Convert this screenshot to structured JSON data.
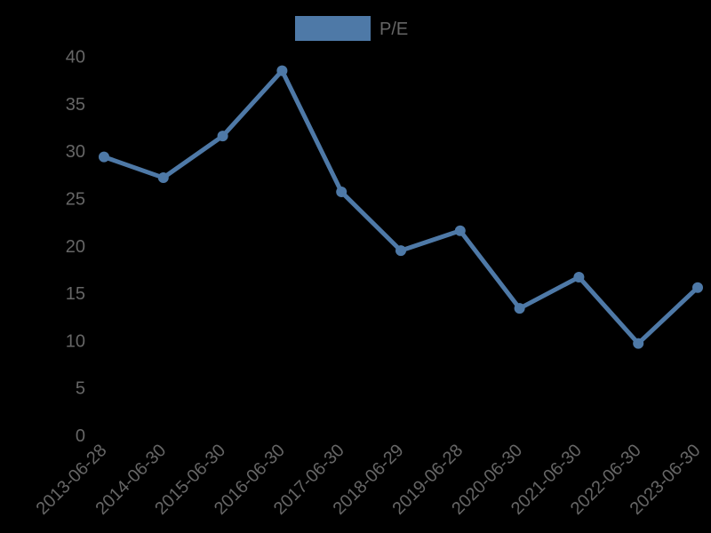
{
  "chart_data": {
    "type": "line",
    "title": "",
    "xlabel": "",
    "ylabel": "",
    "categories": [
      "2013-06-28",
      "2014-06-30",
      "2015-06-30",
      "2016-06-30",
      "2017-06-30",
      "2018-06-29",
      "2019-06-28",
      "2020-06-30",
      "2021-06-30",
      "2022-06-30",
      "2023-06-30"
    ],
    "series": [
      {
        "name": "P/E",
        "color": "#4e79a7",
        "values": [
          29.4,
          27.2,
          31.6,
          38.5,
          25.7,
          19.5,
          21.6,
          13.4,
          16.7,
          9.7,
          15.6
        ]
      }
    ],
    "ylim": [
      0,
      40
    ],
    "yticks": [
      0,
      5,
      10,
      15,
      20,
      25,
      30,
      35,
      40
    ],
    "grid": false,
    "legend_position": "top-center",
    "background": "#000000",
    "text_color": "#666666"
  },
  "legend": {
    "label": "P/E"
  }
}
